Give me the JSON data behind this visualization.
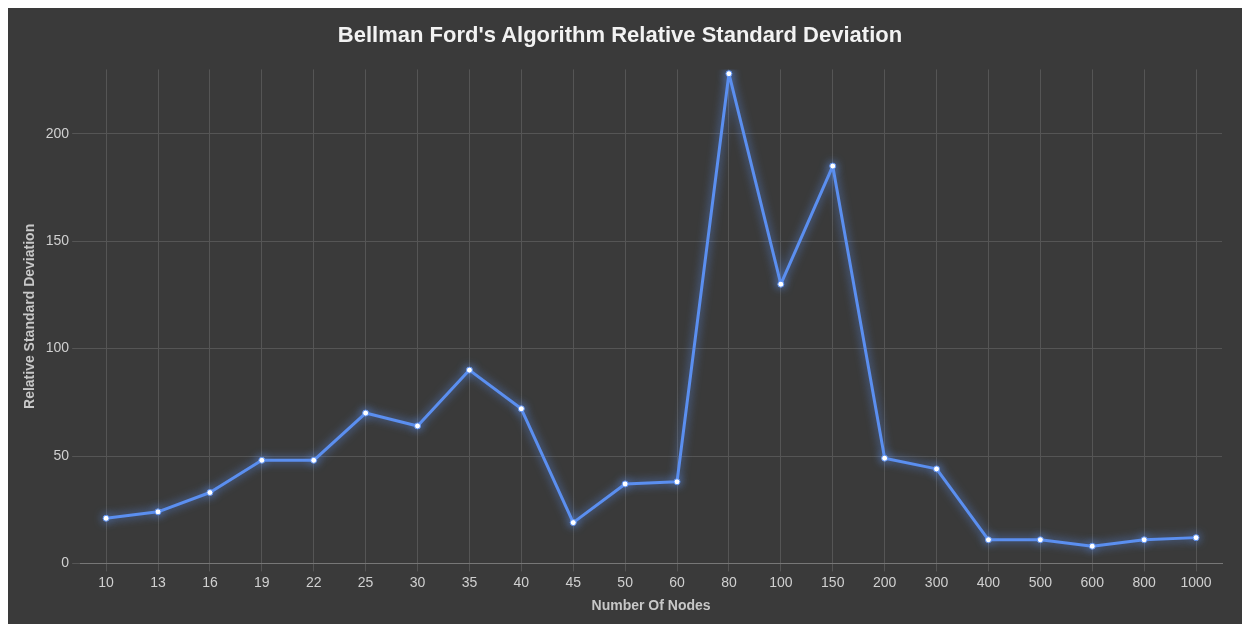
{
  "chart_data": {
    "type": "line",
    "title": "Bellman Ford's Algorithm Relative Standard Deviation",
    "xlabel": "Number Of Nodes",
    "ylabel": "Relative Standard Deviation",
    "categories": [
      "10",
      "13",
      "16",
      "19",
      "22",
      "25",
      "30",
      "35",
      "40",
      "45",
      "50",
      "60",
      "80",
      "100",
      "150",
      "200",
      "300",
      "400",
      "500",
      "600",
      "800",
      "1000"
    ],
    "series": [
      {
        "color": "#5b8ff0",
        "values": [
          21,
          24,
          33,
          48,
          48,
          70,
          64,
          90,
          72,
          19,
          37,
          38,
          228,
          130,
          185,
          49,
          44,
          11,
          11,
          8,
          11,
          12
        ]
      }
    ],
    "ylim": [
      0,
      230
    ],
    "yticks": [
      0,
      50,
      100,
      150,
      200
    ],
    "grid": true,
    "legend": false,
    "marker": "circle",
    "line_style": "solid"
  }
}
